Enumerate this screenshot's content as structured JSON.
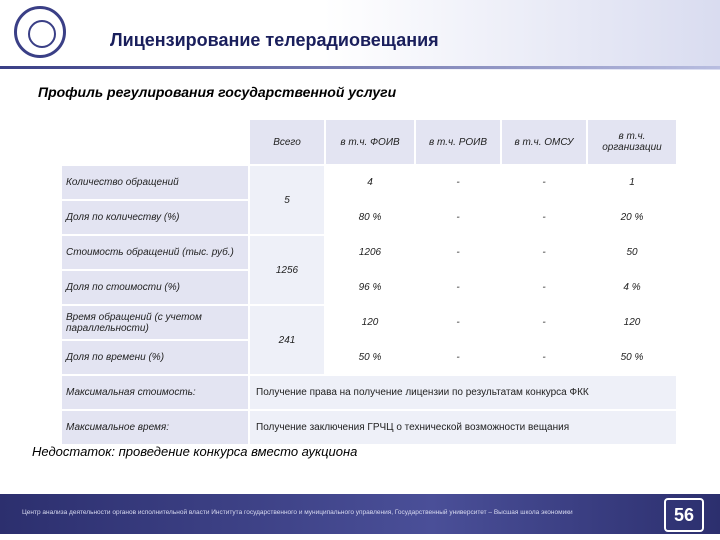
{
  "header": {
    "title": "Лицензирование телерадиовещания"
  },
  "subtitle": "Профиль регулирования государственной услуги",
  "table": {
    "columns": [
      "Всего",
      "в т.ч. ФОИВ",
      "в т.ч. РОИВ",
      "в т.ч. ОМСУ",
      "в т.ч. организации"
    ],
    "rows": [
      {
        "label": "Количество  обращений",
        "total": "5",
        "values": [
          "4",
          "-",
          "-",
          "1"
        ]
      },
      {
        "label": "Доля по количеству (%)",
        "values": [
          "80 %",
          "-",
          "-",
          "20 %"
        ]
      },
      {
        "label": "Стоимость обращений (тыс. руб.)",
        "total": "1256",
        "values": [
          "1206",
          "-",
          "-",
          "50"
        ]
      },
      {
        "label": "Доля по стоимости (%)",
        "values": [
          "96 %",
          "-",
          "-",
          "4 %"
        ]
      },
      {
        "label": "Время обращений (с учетом параллельности)",
        "total": "241",
        "values": [
          "120",
          "-",
          "-",
          "120"
        ]
      },
      {
        "label": "Доля по времени (%)",
        "values": [
          "50 %",
          "-",
          "-",
          "50 %"
        ]
      }
    ],
    "notes": [
      {
        "label": "Максимальная стоимость:",
        "text": "Получение права на получение лицензии по результатам конкурса ФКК"
      },
      {
        "label": "Максимальное время:",
        "text": "Получение заключения ГРЧЦ о технической возможности вещания"
      }
    ]
  },
  "drawback": "Недостаток: проведение конкурса вместо аукциона",
  "footer": {
    "text": "Центр анализа деятельности органов исполнительной власти Института государственного и муниципального управления, Государственный университет – Высшая школа экономики",
    "page": "56"
  }
}
